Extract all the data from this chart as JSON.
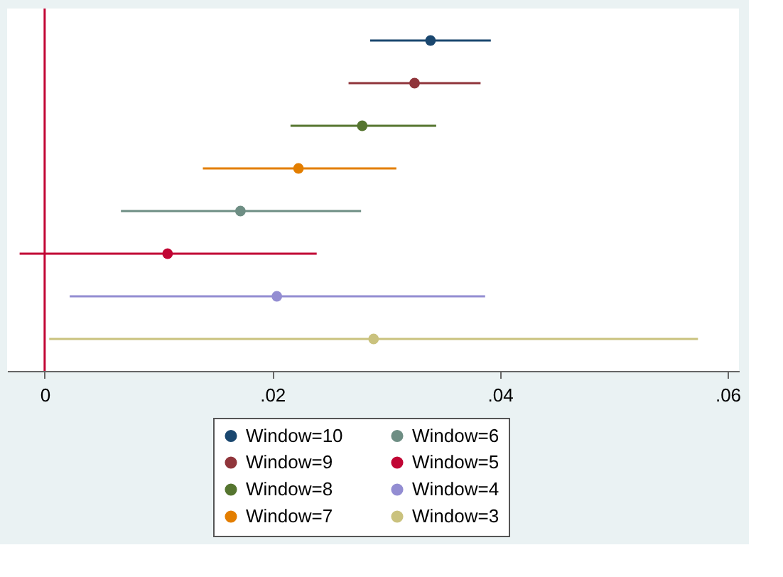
{
  "chart_data": {
    "type": "scatter",
    "orientation": "horizontal",
    "categories": [
      null,
      null,
      null,
      null,
      null,
      null,
      null,
      null
    ],
    "series": [
      {
        "name": "Window=10",
        "color": "#1a476f",
        "values": [
          0.0339,
          null,
          null,
          null,
          null,
          null,
          null,
          null
        ],
        "errors": [
          [
            0.0286,
            0.0392
          ],
          null,
          null,
          null,
          null,
          null,
          null,
          null
        ]
      },
      {
        "name": "Window=9",
        "color": "#90353b",
        "values": [
          null,
          0.0325,
          null,
          null,
          null,
          null,
          null,
          null
        ],
        "errors": [
          null,
          [
            0.0267,
            0.0383
          ],
          null,
          null,
          null,
          null,
          null,
          null
        ]
      },
      {
        "name": "Window=8",
        "color": "#55752f",
        "values": [
          null,
          null,
          0.0279,
          null,
          null,
          null,
          null,
          null
        ],
        "errors": [
          null,
          null,
          [
            0.0216,
            0.0344
          ],
          null,
          null,
          null,
          null,
          null
        ]
      },
      {
        "name": "Window=7",
        "color": "#e37e00",
        "values": [
          null,
          null,
          null,
          0.0223,
          null,
          null,
          null,
          null
        ],
        "errors": [
          null,
          null,
          null,
          [
            0.0139,
            0.0309
          ],
          null,
          null,
          null,
          null
        ]
      },
      {
        "name": "Window=6",
        "color": "#6e8e84",
        "values": [
          null,
          null,
          null,
          null,
          0.0172,
          null,
          null,
          null
        ],
        "errors": [
          null,
          null,
          null,
          null,
          [
            0.0067,
            0.0278
          ],
          null,
          null,
          null
        ]
      },
      {
        "name": "Window=5",
        "color": "#c10534",
        "values": [
          null,
          null,
          null,
          null,
          null,
          0.0108,
          null,
          null
        ],
        "errors": [
          null,
          null,
          null,
          null,
          null,
          [
            -0.0022,
            0.0239
          ],
          null,
          null
        ]
      },
      {
        "name": "Window=4",
        "color": "#938dd2",
        "values": [
          null,
          null,
          null,
          null,
          null,
          null,
          0.0204,
          null
        ],
        "errors": [
          null,
          null,
          null,
          null,
          null,
          null,
          [
            0.0022,
            0.0387
          ],
          null
        ]
      },
      {
        "name": "Window=3",
        "color": "#cac27e",
        "values": [
          null,
          null,
          null,
          null,
          null,
          null,
          null,
          0.0289
        ],
        "errors": [
          null,
          null,
          null,
          null,
          null,
          null,
          null,
          [
            0.0004,
            0.0574
          ]
        ]
      }
    ],
    "xlim": [
      -0.0033,
      0.061
    ],
    "xticks": [
      {
        "value": 0,
        "label": "0"
      },
      {
        "value": 0.02,
        "label": ".02"
      },
      {
        "value": 0.04,
        "label": ".04"
      },
      {
        "value": 0.06,
        "label": ".06"
      }
    ],
    "ref_lines": [
      {
        "axis": "x",
        "value": 0,
        "color": "#c10534"
      }
    ],
    "tick_labels": "x",
    "marker": "circle",
    "legend": "bottom",
    "grid": false
  }
}
